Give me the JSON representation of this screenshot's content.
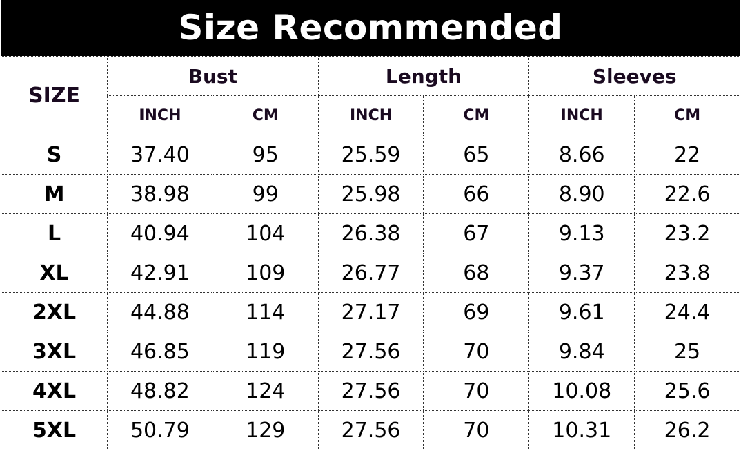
{
  "title": "Size Recommended",
  "header": {
    "size": "SIZE",
    "groups": [
      "Bust",
      "Length",
      "Sleeves"
    ],
    "units": [
      "INCH",
      "CM",
      "INCH",
      "CM",
      "INCH",
      "CM"
    ]
  },
  "rows": [
    [
      "S",
      "37.40",
      "95",
      "25.59",
      "65",
      "8.66",
      "22"
    ],
    [
      "M",
      "38.98",
      "99",
      "25.98",
      "66",
      "8.90",
      "22.6"
    ],
    [
      "L",
      "40.94",
      "104",
      "26.38",
      "67",
      "9.13",
      "23.2"
    ],
    [
      "XL",
      "42.91",
      "109",
      "26.77",
      "68",
      "9.37",
      "23.8"
    ],
    [
      "2XL",
      "44.88",
      "114",
      "27.17",
      "69",
      "9.61",
      "24.4"
    ],
    [
      "3XL",
      "46.85",
      "119",
      "27.56",
      "70",
      "9.84",
      "25"
    ],
    [
      "4XL",
      "48.82",
      "124",
      "27.56",
      "70",
      "10.08",
      "25.6"
    ],
    [
      "5XL",
      "50.79",
      "129",
      "27.56",
      "70",
      "10.31",
      "26.2"
    ]
  ]
}
